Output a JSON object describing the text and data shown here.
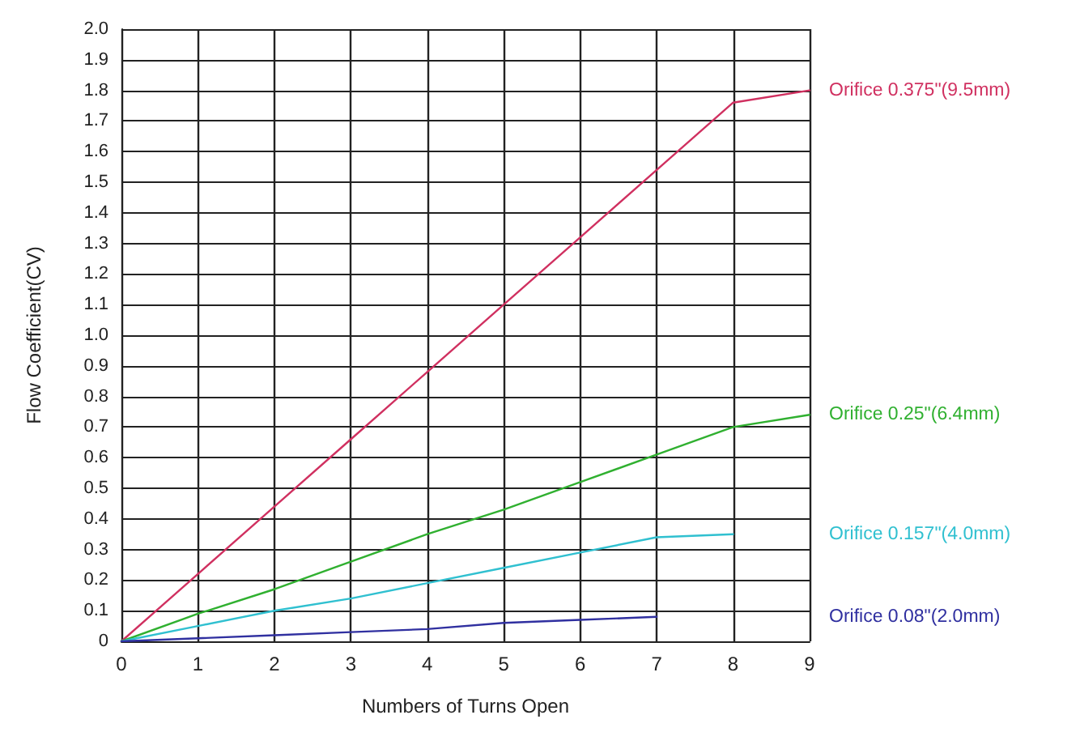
{
  "chart_data": {
    "type": "line",
    "xlabel": "Numbers of Turns Open",
    "ylabel": "Flow Coefficient(CV)",
    "x": [
      0,
      1,
      2,
      3,
      4,
      5,
      6,
      7,
      8,
      9
    ],
    "series": [
      {
        "name": "Orifice 0.375\"(9.5mm)",
        "color": "#d03060",
        "values": [
          0,
          0.22,
          0.44,
          0.66,
          0.88,
          1.1,
          1.32,
          1.54,
          1.76,
          1.8
        ]
      },
      {
        "name": "Orifice 0.25\"(6.4mm)",
        "color": "#30b030",
        "values": [
          0,
          0.09,
          0.17,
          0.26,
          0.35,
          0.43,
          0.52,
          0.61,
          0.7,
          0.74
        ]
      },
      {
        "name": "Orifice 0.157\"(4.0mm)",
        "color": "#30c0d0",
        "values": [
          0,
          0.05,
          0.1,
          0.14,
          0.19,
          0.24,
          0.29,
          0.34,
          0.35,
          null
        ]
      },
      {
        "name": "Orifice 0.08\"(2.0mm)",
        "color": "#3030a0",
        "values": [
          0,
          0.01,
          0.02,
          0.03,
          0.04,
          0.06,
          0.07,
          0.08,
          null,
          null
        ]
      }
    ],
    "xlim": [
      0,
      9
    ],
    "xticks": [
      0,
      1,
      2,
      3,
      4,
      5,
      6,
      7,
      8,
      9
    ],
    "ylim": [
      0,
      2
    ],
    "yticks": [
      0,
      0.1,
      0.2,
      0.3,
      0.4,
      0.5,
      0.6,
      0.7,
      0.8,
      0.9,
      {
        "value": 1,
        "label": "1.0"
      },
      1.1,
      1.2,
      1.3,
      1.4,
      1.5,
      1.6,
      1.7,
      1.8,
      1.9,
      {
        "value": 2,
        "label": "2.0"
      }
    ],
    "grid": true,
    "legend": false,
    "marker": "none",
    "line_style": "solid"
  }
}
